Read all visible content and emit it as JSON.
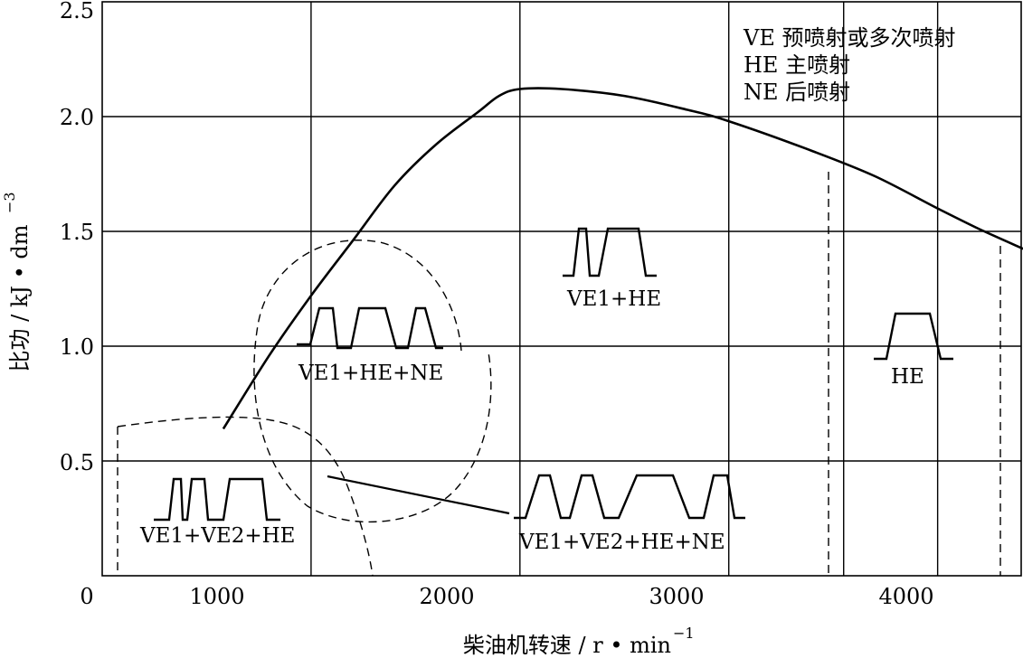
{
  "chart_data": {
    "type": "line",
    "title": "",
    "xlabel": "柴油机转速 / r • min",
    "xlabel_exp": "−1",
    "ylabel": "比功 / kJ • dm",
    "ylabel_exp": "−3",
    "xlim": [
      0,
      4400
    ],
    "ylim": [
      0,
      2.5
    ],
    "origin_label": "0",
    "x_ticks": [
      1000,
      2000,
      3000,
      4000
    ],
    "x_tick_labels": [
      "1000",
      "2000",
      "3000",
      "4000"
    ],
    "y_ticks": [
      0.5,
      1.0,
      1.5,
      2.0,
      2.5
    ],
    "y_tick_labels": [
      "0.5",
      "1.0",
      "1.5",
      "2.0",
      "2.5"
    ],
    "x_gridlines": [
      1000,
      2000,
      3000,
      3550,
      4000
    ],
    "y_gridlines": [
      0.5,
      1.0,
      1.5,
      2.0
    ],
    "grid": true,
    "series": [
      {
        "x": [
          580,
          800,
          1000,
          1200,
          1400,
          1600,
          1800,
          1900,
          2000,
          2200,
          2500,
          2800,
          3000,
          3400,
          3700,
          4000,
          4200,
          4420
        ],
        "y": [
          0.64,
          0.96,
          1.22,
          1.46,
          1.7,
          1.88,
          2.02,
          2.09,
          2.12,
          2.12,
          2.09,
          2.03,
          1.98,
          1.85,
          1.74,
          1.6,
          1.51,
          1.42
        ]
      }
    ],
    "legend": {
      "position": "top-right",
      "entries": [
        "VE 预喷射或多次喷射",
        "HE 主喷射",
        "NE 后喷射"
      ]
    },
    "regions": [
      {
        "label": "VE1+VE2+HE",
        "boundary": "dashed"
      },
      {
        "label": "VE1+HE+NE",
        "boundary": "dashed"
      },
      {
        "label": "VE1+HE",
        "boundary": "none"
      },
      {
        "label": "HE",
        "boundary": "dashed"
      },
      {
        "label": "VE1+VE2+HE+NE",
        "boundary": "dashed"
      }
    ]
  }
}
